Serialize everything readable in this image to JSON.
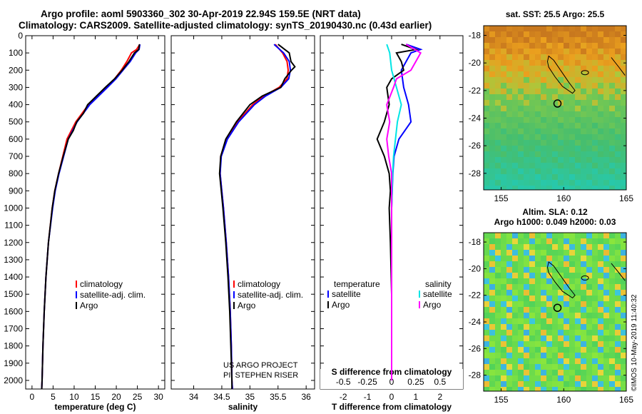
{
  "header": {
    "title_line1": "Argo profile: aoml 5903360_302 30-Apr-2019 22.94S 159.5E (NRT data)",
    "title_line2": "Climatology: CARS2009. Satellite-adjusted climatology: synTS_20190430.nc (0.43d earlier)"
  },
  "watermark": "©IMOS 10-May-2019 11:40:32",
  "credits": {
    "line1": "US ARGO PROJECT",
    "line2": "PI: STEPHEN RISER"
  },
  "colors": {
    "climatology": "#ff0000",
    "satellite": "#0000ff",
    "argo": "#000000",
    "sat_salinity": "#00e5e5",
    "argo_salinity": "#ff00ff"
  },
  "depth_axis": {
    "ticks": [
      0,
      100,
      200,
      300,
      400,
      500,
      600,
      700,
      800,
      900,
      1000,
      1100,
      1200,
      1300,
      1400,
      1500,
      1600,
      1700,
      1800,
      1900,
      2000
    ],
    "range": [
      0,
      2050
    ]
  },
  "chart_data": [
    {
      "type": "line",
      "id": "temperature",
      "xlabel": "temperature (deg C)",
      "ylabel": "depth",
      "xlim": [
        -1.5,
        31.5
      ],
      "ylim": [
        2050,
        0
      ],
      "xticks": [
        0,
        5,
        10,
        15,
        20,
        25,
        30
      ],
      "legend": [
        "climatology",
        "satellite-adj. clim.",
        "Argo"
      ],
      "series": [
        {
          "name": "climatology",
          "depth": [
            50,
            80,
            100,
            150,
            200,
            250,
            300,
            400,
            500,
            600,
            700,
            800,
            900,
            1000,
            1200,
            1400,
            1600,
            1800,
            2000,
            2050
          ],
          "values": [
            25.6,
            24.8,
            23.6,
            22.5,
            21.2,
            19.6,
            17.6,
            13.4,
            10.4,
            8.3,
            7.3,
            6.3,
            5.4,
            4.8,
            3.9,
            3.3,
            2.9,
            2.6,
            2.4,
            2.3
          ]
        },
        {
          "name": "satellite-adj. clim.",
          "depth": [
            50,
            80,
            100,
            150,
            200,
            250,
            300,
            400,
            500,
            600,
            700,
            800,
            900,
            1000,
            1200,
            1400,
            1600,
            1800,
            2000,
            2050
          ],
          "values": [
            25.6,
            25.4,
            24.6,
            23.3,
            21.6,
            19.9,
            17.9,
            13.7,
            10.7,
            8.6,
            7.5,
            6.4,
            5.5,
            4.9,
            3.9,
            3.3,
            2.9,
            2.6,
            2.4,
            2.3
          ]
        },
        {
          "name": "Argo",
          "depth": [
            50,
            80,
            100,
            150,
            200,
            250,
            300,
            350,
            400,
            450,
            500,
            550,
            600,
            700,
            800,
            900,
            1000,
            1200,
            1400,
            1600,
            1800,
            2000,
            2050
          ],
          "values": [
            25.5,
            25.3,
            24.3,
            23.0,
            21.4,
            19.6,
            17.4,
            15.3,
            13.2,
            12.2,
            10.6,
            9.8,
            8.6,
            7.4,
            6.3,
            5.4,
            4.8,
            3.9,
            3.3,
            2.9,
            2.6,
            2.4,
            2.3
          ]
        }
      ]
    },
    {
      "type": "line",
      "id": "salinity",
      "xlabel": "salinity",
      "ylabel": "depth",
      "xlim": [
        33.6,
        36.15
      ],
      "ylim": [
        2050,
        0
      ],
      "xticks": [
        34,
        34.5,
        35,
        35.5,
        36
      ],
      "legend": [
        "climatology",
        "satellite-adj. clim.",
        "Argo"
      ],
      "series": [
        {
          "name": "climatology",
          "depth": [
            50,
            100,
            150,
            200,
            250,
            300,
            350,
            400,
            500,
            600,
            700,
            800,
            900,
            1000,
            1200,
            1400,
            1600,
            1800,
            2000,
            2050
          ],
          "values": [
            35.45,
            35.58,
            35.66,
            35.68,
            35.66,
            35.52,
            35.25,
            35.05,
            34.78,
            34.58,
            34.48,
            34.47,
            34.5,
            34.53,
            34.58,
            34.62,
            34.65,
            34.67,
            34.68,
            34.69
          ]
        },
        {
          "name": "satellite-adj. clim.",
          "depth": [
            50,
            100,
            150,
            200,
            250,
            300,
            350,
            400,
            500,
            600,
            700,
            800,
            900,
            1000,
            1200,
            1400,
            1600,
            1800,
            2000,
            2050
          ],
          "values": [
            35.43,
            35.6,
            35.7,
            35.72,
            35.69,
            35.55,
            35.28,
            35.08,
            34.8,
            34.6,
            34.49,
            34.47,
            34.5,
            34.53,
            34.58,
            34.62,
            34.65,
            34.67,
            34.68,
            34.69
          ]
        },
        {
          "name": "Argo",
          "depth": [
            50,
            80,
            100,
            150,
            180,
            200,
            250,
            300,
            350,
            400,
            500,
            600,
            700,
            800,
            900,
            1000,
            1200,
            1400,
            1600,
            1800,
            2000,
            2050
          ],
          "values": [
            35.5,
            35.62,
            35.7,
            35.73,
            35.8,
            35.74,
            35.62,
            35.55,
            35.22,
            35.0,
            34.76,
            34.57,
            34.48,
            34.46,
            34.49,
            34.52,
            34.57,
            34.61,
            34.64,
            34.66,
            34.68,
            34.68
          ]
        }
      ]
    },
    {
      "type": "line",
      "id": "differences",
      "xlabel": "T difference from climatology",
      "xlabel2": "S difference from climatology",
      "xlim": [
        -2.95,
        2.95
      ],
      "ylim": [
        2050,
        0
      ],
      "xticks": [
        -2,
        -1,
        0,
        1,
        2
      ],
      "xticks_s_values": [
        -0.5,
        -0.25,
        0,
        0.25,
        0.5
      ],
      "xticks_s": [
        "-0.5",
        "-0.25",
        "0",
        "0.25",
        "0.5"
      ],
      "legend_left_title": "temperature",
      "legend_right_title": "salinity",
      "legend": [
        "satellite",
        "Argo",
        "satellite",
        "Argo"
      ],
      "series": [
        {
          "name": "T satellite",
          "depth": [
            50,
            80,
            100,
            150,
            200,
            300,
            400,
            500,
            600,
            700,
            800,
            1000,
            1200,
            1500,
            1800,
            2000
          ],
          "values": [
            0.6,
            1.2,
            0.8,
            0.6,
            0.4,
            0.5,
            0.7,
            0.8,
            0.3,
            0.1,
            0.05,
            0.0,
            0.0,
            0.0,
            0.0,
            0.0
          ]
        },
        {
          "name": "T Argo",
          "depth": [
            50,
            80,
            100,
            150,
            200,
            250,
            300,
            400,
            500,
            600,
            700,
            800,
            900,
            1000,
            1200,
            1500,
            1800,
            2000
          ],
          "values": [
            0.4,
            1.0,
            0.2,
            0.4,
            0.5,
            0.0,
            -0.2,
            -0.1,
            -0.3,
            -0.6,
            -0.3,
            -0.1,
            -0.05,
            -0.1,
            -0.05,
            0.0,
            0.0,
            0.0
          ]
        },
        {
          "name": "S satellite",
          "depth": [
            50,
            100,
            200,
            300,
            400,
            500,
            600,
            700,
            800,
            1000,
            1500,
            2000
          ],
          "values": [
            -0.05,
            -0.02,
            0.0,
            0.05,
            0.1,
            0.06,
            0.04,
            0.02,
            0.01,
            0.0,
            0.0,
            0.0
          ]
        },
        {
          "name": "S Argo",
          "depth": [
            50,
            100,
            150,
            200,
            250,
            300,
            400,
            500,
            600,
            700,
            800,
            1000,
            1500,
            2000
          ],
          "values": [
            0.15,
            0.3,
            0.25,
            0.2,
            0.05,
            0.02,
            -0.05,
            -0.02,
            -0.05,
            -0.03,
            0.0,
            0.0,
            0.0,
            0.0
          ]
        }
      ]
    },
    {
      "type": "heatmap",
      "id": "sst_map",
      "title": "sat. SST: 25.5 Argo: 25.5",
      "xticks": [
        155,
        160,
        165
      ],
      "yticks": [
        -18,
        -20,
        -22,
        -24,
        -26,
        -28
      ],
      "xlim": [
        153.6,
        165
      ],
      "ylim": [
        -29.2,
        -17.3
      ],
      "argo_position": {
        "lon": 159.5,
        "lat": -22.94
      }
    },
    {
      "type": "heatmap",
      "id": "sla_map",
      "title_line1": "Altim. SLA: 0.12",
      "title_line2": "Argo h1000: 0.049 h2000: 0.03",
      "xticks": [
        155,
        160,
        165
      ],
      "yticks": [
        -18,
        -20,
        -22,
        -24,
        -26,
        -28
      ],
      "xlim": [
        153.6,
        165
      ],
      "ylim": [
        -29.2,
        -17.3
      ],
      "argo_position": {
        "lon": 159.5,
        "lat": -22.94
      }
    }
  ]
}
